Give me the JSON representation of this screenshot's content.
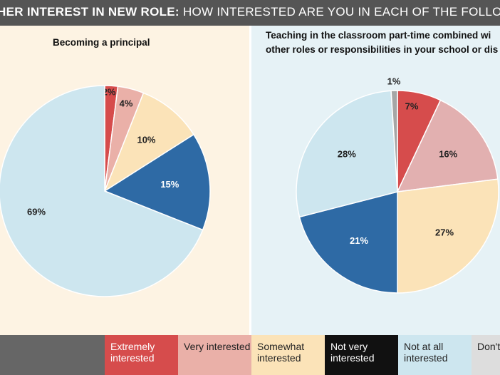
{
  "header": {
    "title_bold": "HER INTEREST IN NEW ROLE:",
    "title_rest": "HOW INTERESTED ARE YOU IN EACH OF THE FOLLOWING?"
  },
  "colors": {
    "extremely": "#d64c4c",
    "very": "#eab0a8",
    "somewhat": "#fbe3b8",
    "not_very": "#111111",
    "not_at_all": "#cde6ef",
    "dont_know": "#a6a6a6",
    "dark_blue": "#2e6aa5"
  },
  "chart_data": [
    {
      "type": "pie",
      "title": "Becoming a principal",
      "slices": [
        {
          "label": "Extremely interested",
          "value": 2,
          "text": "2%",
          "color": "#d64c4c"
        },
        {
          "label": "Very interested",
          "value": 4,
          "text": "4%",
          "color": "#eab0a8"
        },
        {
          "label": "Somewhat interested",
          "value": 10,
          "text": "10%",
          "color": "#fbe3b8"
        },
        {
          "label": "Not very interested",
          "value": 15,
          "text": "15%",
          "color": "#2e6aa5"
        },
        {
          "label": "Not at all interested",
          "value": 69,
          "text": "69%",
          "color": "#cde6ef"
        }
      ]
    },
    {
      "type": "pie",
      "title": "Teaching in the classroom part-time combined with other roles or responsibilities in your school or district",
      "title_lines": [
        "Teaching in the classroom part-time combined wi",
        "other roles or responsibilities in your school or dis"
      ],
      "slices": [
        {
          "label": "Extremely interested",
          "value": 7,
          "text": "7%",
          "color": "#d64c4c"
        },
        {
          "label": "Very interested",
          "value": 16,
          "text": "16%",
          "color": "#e2b0b0"
        },
        {
          "label": "Somewhat interested",
          "value": 27,
          "text": "27%",
          "color": "#fbe3b8"
        },
        {
          "label": "Not very interested",
          "value": 21,
          "text": "21%",
          "color": "#2e6aa5"
        },
        {
          "label": "Not at all interested",
          "value": 28,
          "text": "28%",
          "color": "#cde6ef"
        },
        {
          "label": "Don't know",
          "value": 1,
          "text": "1%",
          "color": "#a6a6a6"
        }
      ]
    }
  ],
  "legend": [
    {
      "text": "Extremely interested",
      "bg": "#d64c4c",
      "fg": "#ffffff"
    },
    {
      "text": "Very interested",
      "bg": "#eab0a8",
      "fg": "#222222"
    },
    {
      "text": "Somewhat interested",
      "bg": "#fbe3b8",
      "fg": "#222222"
    },
    {
      "text": "Not very interested",
      "bg": "#111111",
      "fg": "#ffffff"
    },
    {
      "text": "Not at all interested",
      "bg": "#cde6ef",
      "fg": "#222222"
    },
    {
      "text": "Don't know",
      "bg": "#dddddd",
      "fg": "#222222"
    }
  ]
}
